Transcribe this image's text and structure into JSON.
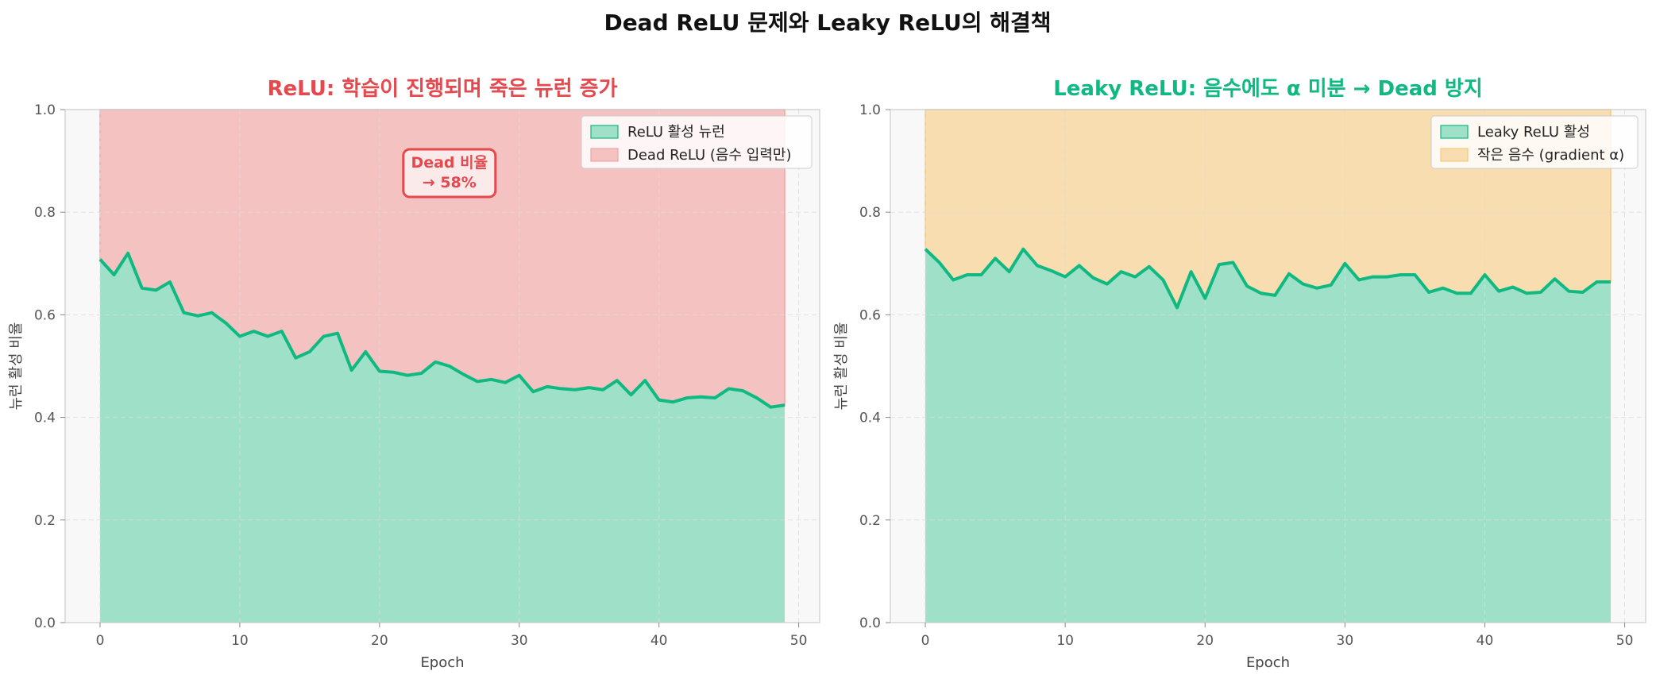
{
  "suptitle": "Dead ReLU 문제와 Leaky ReLU의 해결책",
  "chart_data": [
    {
      "type": "area",
      "title": "ReLU: 학습이 진행되며 죽은 뉴런 증가",
      "title_color": "#e5484d",
      "xlabel": "Epoch",
      "ylabel": "뉴런 활성 비율",
      "xlim": [
        -2.5,
        51.5
      ],
      "ylim": [
        0,
        1.0
      ],
      "xticks": [
        0,
        10,
        20,
        30,
        40,
        50
      ],
      "yticks": [
        0.0,
        0.2,
        0.4,
        0.6,
        0.8,
        1.0
      ],
      "grid": true,
      "legend_position": "top-right",
      "x": [
        0,
        1,
        2,
        3,
        4,
        5,
        6,
        7,
        8,
        9,
        10,
        11,
        12,
        13,
        14,
        15,
        16,
        17,
        18,
        19,
        20,
        21,
        22,
        23,
        24,
        25,
        26,
        27,
        28,
        29,
        30,
        31,
        32,
        33,
        34,
        35,
        36,
        37,
        38,
        39,
        40,
        41,
        42,
        43,
        44,
        45,
        46,
        47,
        48,
        49
      ],
      "series": [
        {
          "name": "ReLU 활성 뉴런",
          "color": "#10b981",
          "fill": "#9fe0c9",
          "values": [
            0.708,
            0.678,
            0.72,
            0.652,
            0.648,
            0.664,
            0.604,
            0.598,
            0.604,
            0.584,
            0.558,
            0.568,
            0.558,
            0.568,
            0.516,
            0.528,
            0.558,
            0.564,
            0.492,
            0.528,
            0.49,
            0.488,
            0.482,
            0.486,
            0.508,
            0.5,
            0.484,
            0.47,
            0.474,
            0.468,
            0.482,
            0.45,
            0.46,
            0.456,
            0.454,
            0.458,
            0.454,
            0.472,
            0.444,
            0.472,
            0.434,
            0.43,
            0.438,
            0.44,
            0.438,
            0.456,
            0.452,
            0.438,
            0.42,
            0.424
          ]
        },
        {
          "name": "Dead ReLU (음수 입력만)",
          "color": "#f0a5a5",
          "fill": "#f5c2c2",
          "upper": 1.0
        }
      ],
      "annotation": {
        "text": [
          "Dead 비율",
          "→ 58%"
        ],
        "x": 25,
        "y": 0.87,
        "color": "#e5484d"
      }
    },
    {
      "type": "area",
      "title": "Leaky ReLU: 음수에도 α 미분 → Dead 방지",
      "title_color": "#10b981",
      "xlabel": "Epoch",
      "ylabel": "뉴런 활성 비율",
      "xlim": [
        -2.5,
        51.5
      ],
      "ylim": [
        0,
        1.0
      ],
      "xticks": [
        0,
        10,
        20,
        30,
        40,
        50
      ],
      "yticks": [
        0.0,
        0.2,
        0.4,
        0.6,
        0.8,
        1.0
      ],
      "grid": true,
      "legend_position": "top-right",
      "x": [
        0,
        1,
        2,
        3,
        4,
        5,
        6,
        7,
        8,
        9,
        10,
        11,
        12,
        13,
        14,
        15,
        16,
        17,
        18,
        19,
        20,
        21,
        22,
        23,
        24,
        25,
        26,
        27,
        28,
        29,
        30,
        31,
        32,
        33,
        34,
        35,
        36,
        37,
        38,
        39,
        40,
        41,
        42,
        43,
        44,
        45,
        46,
        47,
        48,
        49
      ],
      "series": [
        {
          "name": "Leaky ReLU 활성",
          "color": "#10b981",
          "fill": "#9fe0c9",
          "values": [
            0.728,
            0.702,
            0.668,
            0.678,
            0.678,
            0.71,
            0.684,
            0.728,
            0.696,
            0.686,
            0.674,
            0.696,
            0.672,
            0.66,
            0.684,
            0.674,
            0.694,
            0.668,
            0.614,
            0.684,
            0.632,
            0.698,
            0.702,
            0.656,
            0.642,
            0.638,
            0.68,
            0.66,
            0.652,
            0.658,
            0.7,
            0.668,
            0.674,
            0.674,
            0.678,
            0.678,
            0.644,
            0.652,
            0.642,
            0.642,
            0.678,
            0.646,
            0.654,
            0.642,
            0.644,
            0.67,
            0.646,
            0.644,
            0.664,
            0.664
          ]
        },
        {
          "name": "작은 음수 (gradient α)",
          "color": "#f5c97a",
          "fill": "#f7ddb0",
          "upper": 1.0
        }
      ]
    }
  ]
}
